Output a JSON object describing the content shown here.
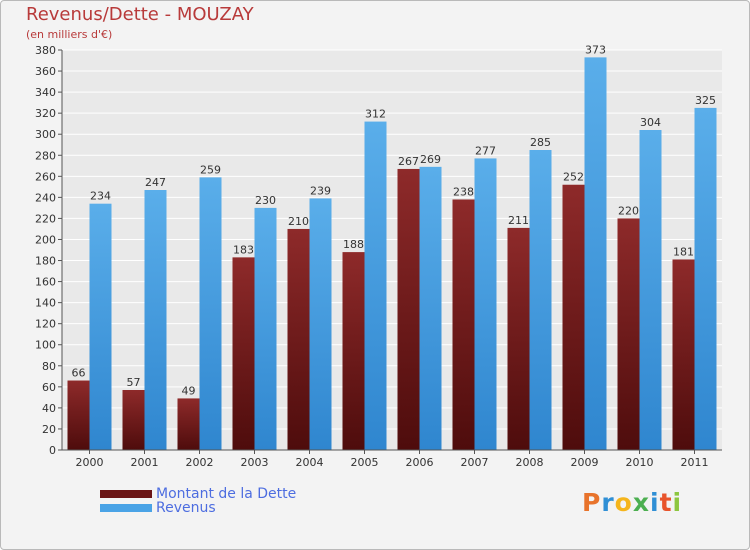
{
  "title": "Revenus/Dette - MOUZAY",
  "subtitle": "(en milliers d'€)",
  "logo": {
    "letters": [
      "P",
      "r",
      "o",
      "x",
      "i",
      "t",
      "i"
    ],
    "colors": [
      "#e8732b",
      "#2f8fd5",
      "#f5b51c",
      "#4caf50",
      "#2f8fd5",
      "#e8542b",
      "#8dc63f"
    ]
  },
  "colors": {
    "dette": "#7a1f1f",
    "revenus": "#4aa3e6",
    "title": "#b83a3a",
    "legend_text": "#4d6de0"
  },
  "chart_data": {
    "type": "bar",
    "title": "Revenus/Dette - MOUZAY",
    "ylabel": "(en milliers d'€)",
    "categories": [
      "2000",
      "2001",
      "2002",
      "2003",
      "2004",
      "2005",
      "2006",
      "2007",
      "2008",
      "2009",
      "2010",
      "2011"
    ],
    "series": [
      {
        "name": "Montant de la Dette",
        "values": [
          66,
          57,
          49,
          183,
          210,
          188,
          267,
          238,
          211,
          252,
          220,
          181
        ]
      },
      {
        "name": "Revenus",
        "values": [
          234,
          247,
          259,
          230,
          239,
          312,
          269,
          277,
          285,
          373,
          304,
          325
        ]
      }
    ],
    "ylim": [
      0,
      380
    ],
    "ytick_step": 20,
    "grid": true,
    "legend": "bottom-left"
  }
}
